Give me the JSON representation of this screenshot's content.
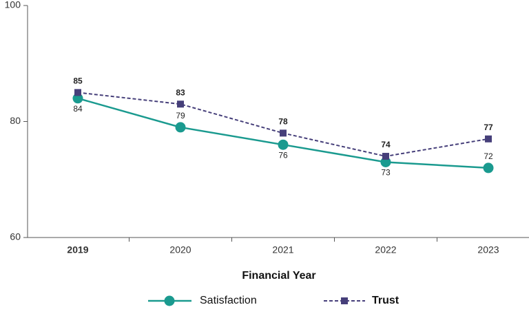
{
  "chart_data": {
    "type": "line",
    "x_label": "Financial Year",
    "categories": [
      "2019",
      "2020",
      "2021",
      "2022",
      "2023"
    ],
    "series": [
      {
        "name": "Satisfaction",
        "color": "#1a9a8f",
        "values": [
          84,
          79,
          76,
          73,
          72
        ]
      },
      {
        "name": "Trust",
        "color": "#463f7a",
        "values": [
          85,
          83,
          78,
          74,
          77
        ]
      }
    ],
    "ylim": [
      60,
      100
    ],
    "yticks": [
      60,
      80,
      100
    ]
  }
}
